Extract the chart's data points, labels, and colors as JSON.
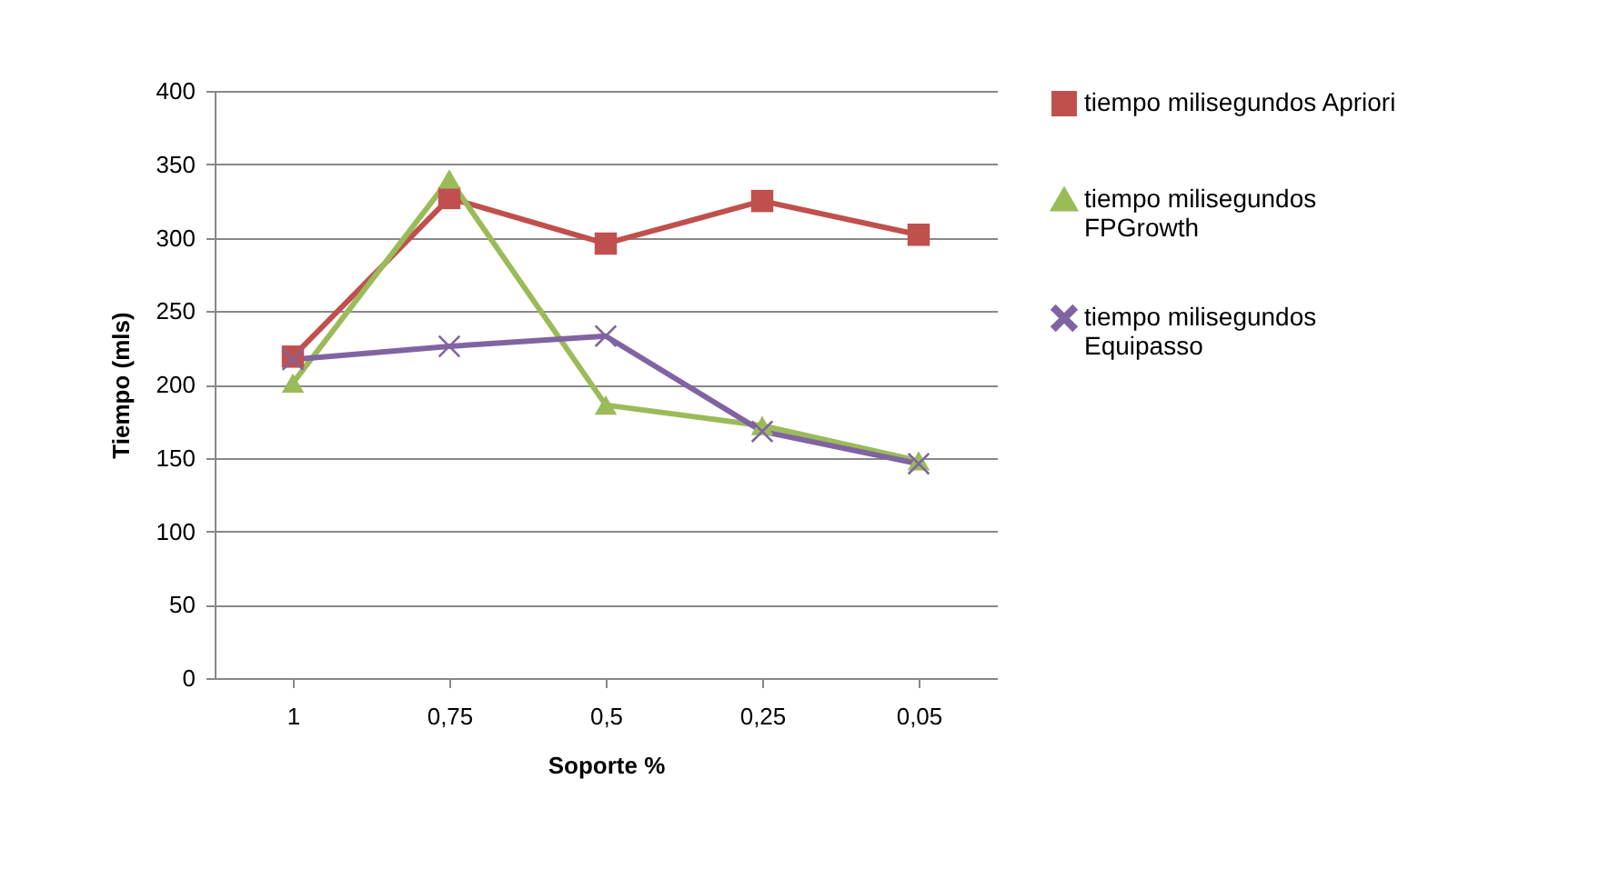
{
  "chart_data": {
    "type": "line",
    "xlabel": "Soporte %",
    "ylabel": "Tiempo (mls)",
    "categories": [
      "1",
      "0,75",
      "0,5",
      "0,25",
      "0,05"
    ],
    "series": [
      {
        "name": "tiempo milisegundos Apriori",
        "color": "#c0504d",
        "marker": "square",
        "values": [
          219,
          327,
          296,
          325,
          302
        ]
      },
      {
        "name": "tiempo milisegundos FPGrowth",
        "color": "#9bbb59",
        "marker": "triangle",
        "values": [
          201,
          340,
          186,
          172,
          148
        ]
      },
      {
        "name": "tiempo milisegundos Equipasso",
        "color": "#8064a2",
        "marker": "cross",
        "values": [
          217,
          226,
          233,
          168,
          146
        ]
      }
    ],
    "ylim": [
      0,
      400
    ],
    "yticks": [
      0,
      50,
      100,
      150,
      200,
      250,
      300,
      350,
      400
    ],
    "grid": "y",
    "legend": "right"
  }
}
